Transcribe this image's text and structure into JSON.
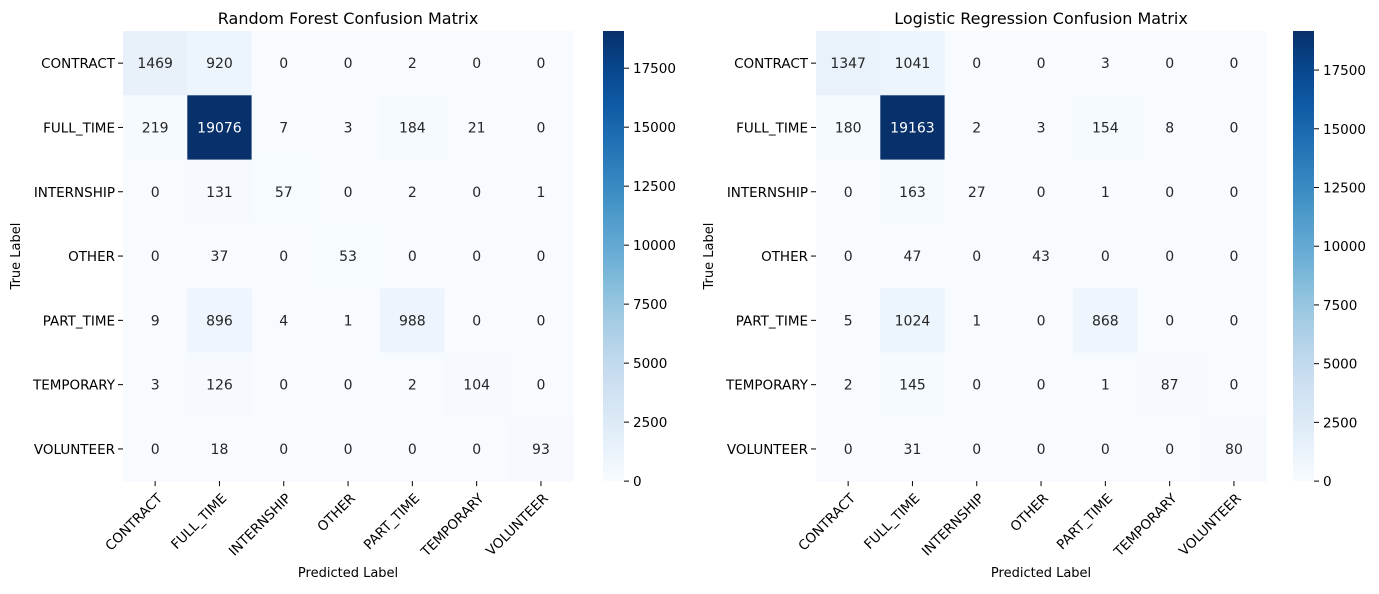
{
  "chart_data": [
    {
      "type": "heatmap",
      "title": "Random Forest Confusion Matrix",
      "xlabel": "Predicted Label",
      "ylabel": "True Label",
      "x_categories": [
        "CONTRACT",
        "FULL_TIME",
        "INTERNSHIP",
        "OTHER",
        "PART_TIME",
        "TEMPORARY",
        "VOLUNTEER"
      ],
      "y_categories": [
        "CONTRACT",
        "FULL_TIME",
        "INTERNSHIP",
        "OTHER",
        "PART_TIME",
        "TEMPORARY",
        "VOLUNTEER"
      ],
      "values": [
        [
          1469,
          920,
          0,
          0,
          2,
          0,
          0
        ],
        [
          219,
          19076,
          7,
          3,
          184,
          21,
          0
        ],
        [
          0,
          131,
          57,
          0,
          2,
          0,
          1
        ],
        [
          0,
          37,
          0,
          53,
          0,
          0,
          0
        ],
        [
          9,
          896,
          4,
          1,
          988,
          0,
          0
        ],
        [
          3,
          126,
          0,
          0,
          2,
          104,
          0
        ],
        [
          0,
          18,
          0,
          0,
          0,
          0,
          93
        ]
      ],
      "colorbar": {
        "min": 0,
        "max": 19076,
        "ticks": [
          0,
          2500,
          5000,
          7500,
          10000,
          12500,
          15000,
          17500
        ]
      },
      "colormap": "Blues"
    },
    {
      "type": "heatmap",
      "title": "Logistic Regression Confusion Matrix",
      "xlabel": "Predicted Label",
      "ylabel": "True Label",
      "x_categories": [
        "CONTRACT",
        "FULL_TIME",
        "INTERNSHIP",
        "OTHER",
        "PART_TIME",
        "TEMPORARY",
        "VOLUNTEER"
      ],
      "y_categories": [
        "CONTRACT",
        "FULL_TIME",
        "INTERNSHIP",
        "OTHER",
        "PART_TIME",
        "TEMPORARY",
        "VOLUNTEER"
      ],
      "values": [
        [
          1347,
          1041,
          0,
          0,
          3,
          0,
          0
        ],
        [
          180,
          19163,
          2,
          3,
          154,
          8,
          0
        ],
        [
          0,
          163,
          27,
          0,
          1,
          0,
          0
        ],
        [
          0,
          47,
          0,
          43,
          0,
          0,
          0
        ],
        [
          5,
          1024,
          1,
          0,
          868,
          0,
          0
        ],
        [
          2,
          145,
          0,
          0,
          1,
          87,
          0
        ],
        [
          0,
          31,
          0,
          0,
          0,
          0,
          80
        ]
      ],
      "colorbar": {
        "min": 0,
        "max": 19163,
        "ticks": [
          0,
          2500,
          5000,
          7500,
          10000,
          12500,
          15000,
          17500
        ]
      },
      "colormap": "Blues"
    }
  ]
}
